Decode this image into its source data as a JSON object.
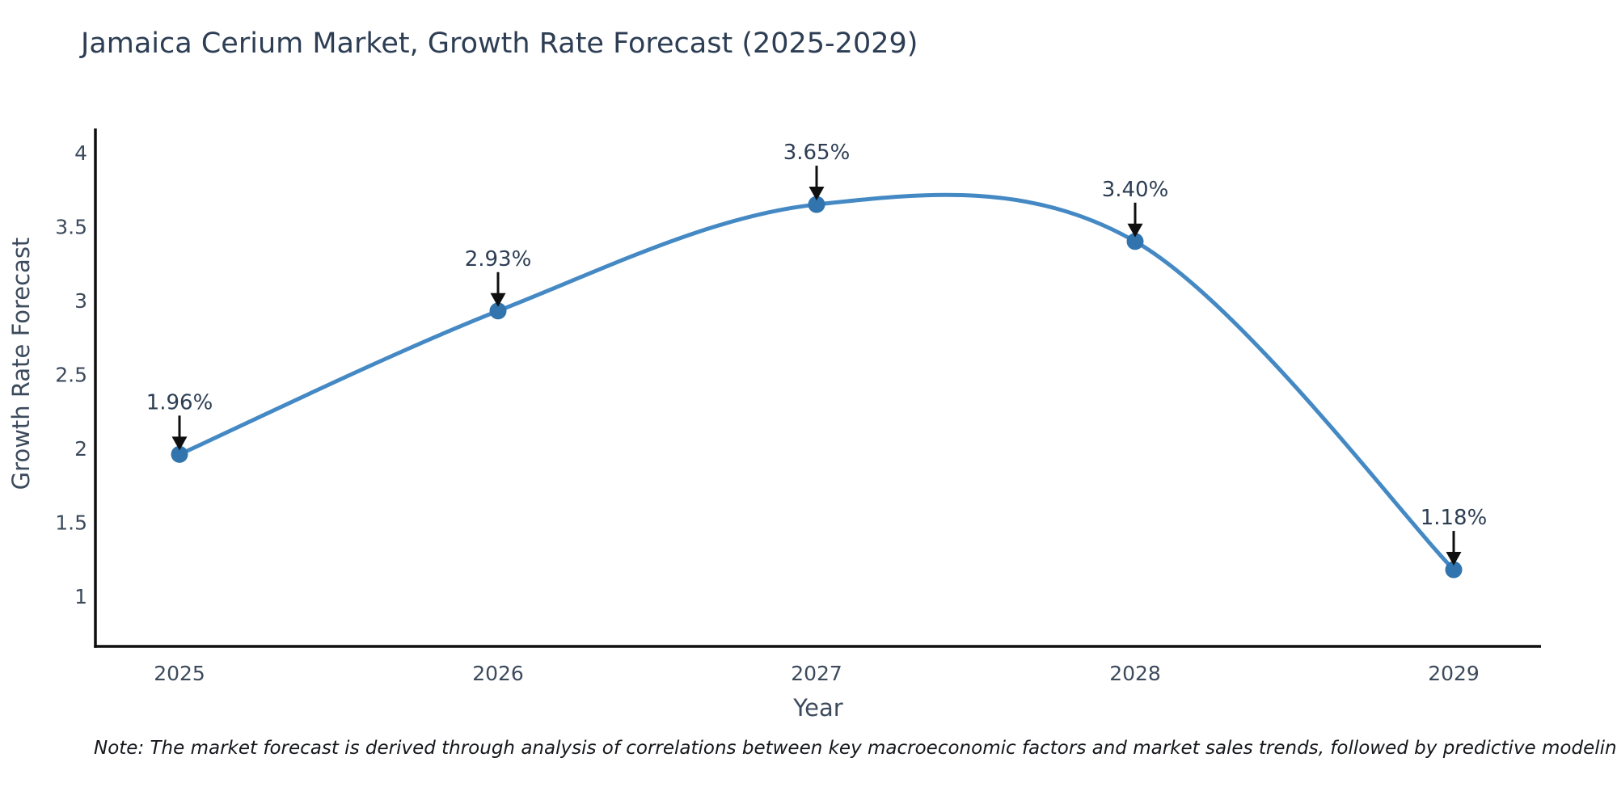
{
  "chart_data": {
    "type": "line",
    "title": "Jamaica Cerium Market, Growth Rate Forecast (2025-2029)",
    "xlabel": "Year",
    "ylabel": "Growth Rate Forecast",
    "x": [
      2025,
      2026,
      2027,
      2028,
      2029
    ],
    "series": [
      {
        "name": "Growth Rate Forecast",
        "values": [
          1.96,
          2.93,
          3.65,
          3.4,
          1.18
        ]
      }
    ],
    "point_labels": [
      "1.96%",
      "2.93%",
      "3.65%",
      "3.40%",
      "1.18%"
    ],
    "yticks": [
      1,
      1.5,
      2,
      2.5,
      3,
      3.5,
      4
    ],
    "ylim": [
      0.66,
      4.2
    ],
    "xlim": [
      2024.74,
      2029.27
    ],
    "grid": false,
    "legend": "none",
    "line_shape": "spline",
    "colors": {
      "line": "#4489c4",
      "marker": "#3174ae",
      "arrow": "#0f0f0f",
      "axis_line": "#0f0f0f",
      "title_text": "#2d3e54",
      "axis_text": "#3c4a5c"
    },
    "note": "Note: The market forecast is derived through analysis of correlations between key macroeconomic factors and market sales trends, followed by predictive modeling to project future sales"
  }
}
